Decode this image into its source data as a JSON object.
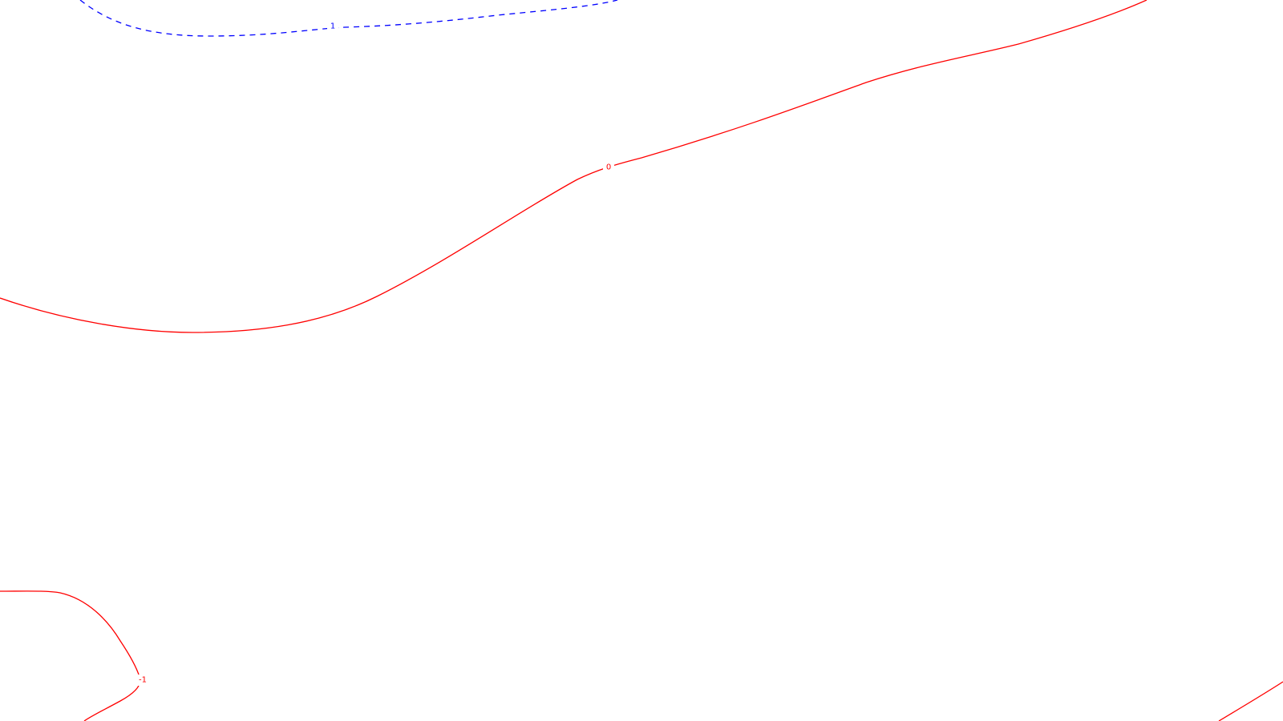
{
  "chart_data": {
    "type": "contour",
    "grid": false,
    "legend": "none",
    "colors": {
      "positive_level": "#0000ff",
      "zero_level": "#ff0000",
      "negative_level": "#ff0000",
      "background": "#ffffff"
    },
    "contours": [
      {
        "level": "1",
        "style": "dashed",
        "color": "#0000ff",
        "label": "1"
      },
      {
        "level": "0",
        "style": "solid",
        "color": "#ff0000",
        "label": "0"
      },
      {
        "level": "-1",
        "style": "solid",
        "color": "#ff0000",
        "label": "-1"
      },
      {
        "level": "-1",
        "style": "solid",
        "color": "#ff0000",
        "label": ""
      }
    ]
  }
}
